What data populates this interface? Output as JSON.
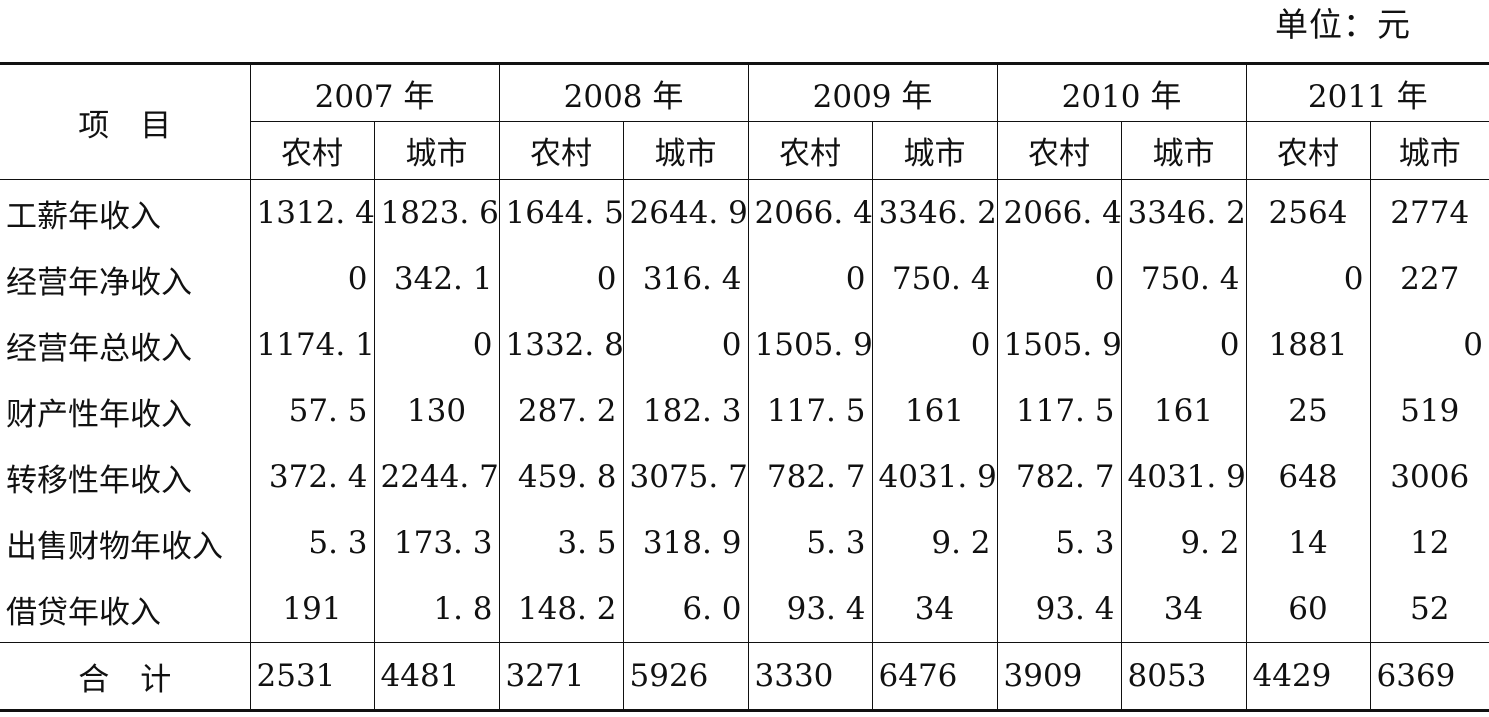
{
  "unit_label": "单位：元",
  "header": {
    "item_label": "项　目",
    "years": [
      "2007 年",
      "2008 年",
      "2009 年",
      "2010 年",
      "2011 年"
    ],
    "sub": [
      "农村",
      "城市"
    ]
  },
  "rows": [
    {
      "label": "工薪年收入",
      "cells": [
        "1312. 4",
        "1823. 6",
        "1644. 5",
        "2644. 9",
        "2066. 4",
        "3346. 2",
        "2066. 4",
        "3346. 2",
        "2564",
        "2774"
      ]
    },
    {
      "label": "经营年净收入",
      "cells": [
        "0",
        "342. 1",
        "0",
        "316. 4",
        "0",
        "750. 4",
        "0",
        "750. 4",
        "0",
        "227"
      ]
    },
    {
      "label": "经营年总收入",
      "cells": [
        "1174. 1",
        "0",
        "1332. 8",
        "0",
        "1505. 9",
        "0",
        "1505. 9",
        "0",
        "1881",
        "0"
      ]
    },
    {
      "label": "财产性年收入",
      "cells": [
        "57. 5",
        "130",
        "287. 2",
        "182. 3",
        "117. 5",
        "161",
        "117. 5",
        "161",
        "25",
        "519"
      ]
    },
    {
      "label": "转移性年收入",
      "cells": [
        "372. 4",
        "2244. 7",
        "459. 8",
        "3075. 7",
        "782. 7",
        "4031. 9",
        "782. 7",
        "4031. 9",
        "648",
        "3006"
      ]
    },
    {
      "label": "出售财物年收入",
      "cells": [
        "5. 3",
        "173. 3",
        "3. 5",
        "318. 9",
        "5. 3",
        "9. 2",
        "5. 3",
        "9. 2",
        "14",
        "12"
      ]
    },
    {
      "label": "借贷年收入",
      "cells": [
        "191",
        "1. 8",
        "148. 2",
        "6. 0",
        "93. 4",
        "34",
        "93. 4",
        "34",
        "60",
        "52"
      ]
    }
  ],
  "total": {
    "label": "合　计",
    "cells": [
      "2531",
      "4481",
      "3271",
      "5926",
      "3330",
      "6476",
      "3909",
      "8053",
      "4429",
      "6369"
    ]
  }
}
